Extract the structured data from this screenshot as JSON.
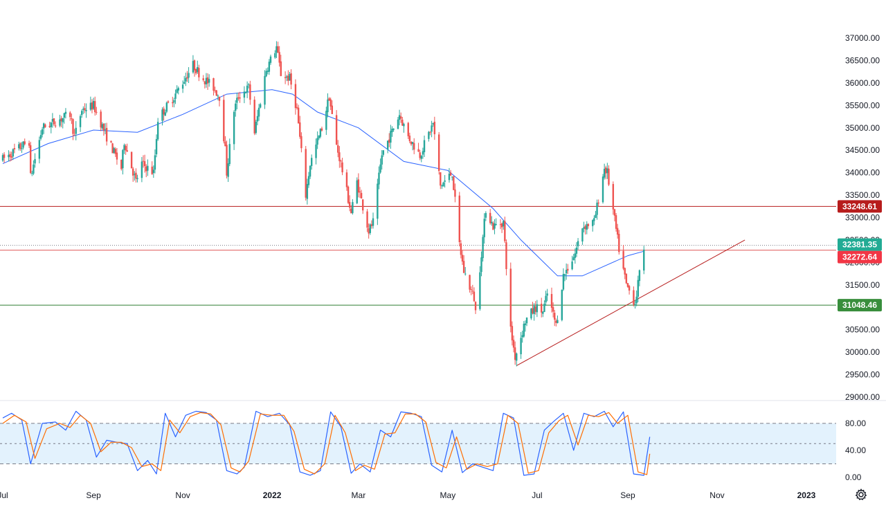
{
  "chart_data": [
    {
      "type": "candlestick",
      "title": "",
      "x_axis": {
        "type": "date",
        "range": [
          "2021-07-01",
          "2023-01-10"
        ],
        "ticks": [
          {
            "date": "2021-07-01",
            "label": "Jul",
            "bold": false
          },
          {
            "date": "2021-09-01",
            "label": "Sep",
            "bold": false
          },
          {
            "date": "2021-11-01",
            "label": "Nov",
            "bold": false
          },
          {
            "date": "2022-01-01",
            "label": "2022",
            "bold": true
          },
          {
            "date": "2022-03-01",
            "label": "Mar",
            "bold": false
          },
          {
            "date": "2022-05-01",
            "label": "May",
            "bold": false
          },
          {
            "date": "2022-07-01",
            "label": "Jul",
            "bold": false
          },
          {
            "date": "2022-09-01",
            "label": "Sep",
            "bold": false
          },
          {
            "date": "2022-11-01",
            "label": "Nov",
            "bold": false
          },
          {
            "date": "2023-01-01",
            "label": "2023",
            "bold": true
          }
        ]
      },
      "y_axis": {
        "range": [
          28850,
          37550
        ],
        "ticks": [
          "37000.00",
          "36500.00",
          "36000.00",
          "35500.00",
          "35000.00",
          "34500.00",
          "34000.00",
          "33500.00",
          "33000.00",
          "32500.00",
          "32000.00",
          "31500.00",
          "31000.00",
          "30500.00",
          "30000.00",
          "29500.00",
          "29000.00"
        ],
        "tick_values": [
          37000,
          36500,
          36000,
          35500,
          35000,
          34500,
          34000,
          33500,
          33000,
          32500,
          32000,
          31500,
          31000,
          30500,
          30000,
          29500,
          29000
        ]
      },
      "price_path": [
        [
          "2021-07-01",
          34300
        ],
        [
          "2021-07-19",
          34700
        ],
        [
          "2021-07-20",
          33900
        ],
        [
          "2021-07-28",
          35000
        ],
        [
          "2021-08-16",
          35300
        ],
        [
          "2021-08-19",
          34800
        ],
        [
          "2021-08-24",
          35400
        ],
        [
          "2021-09-01",
          35500
        ],
        [
          "2021-09-10",
          34800
        ],
        [
          "2021-09-20",
          34100
        ],
        [
          "2021-09-22",
          34700
        ],
        [
          "2021-09-30",
          33800
        ],
        [
          "2021-10-04",
          34200
        ],
        [
          "2021-10-12",
          34000
        ],
        [
          "2021-10-15",
          35200
        ],
        [
          "2021-10-26",
          35700
        ],
        [
          "2021-11-08",
          36400
        ],
        [
          "2021-11-15",
          36100
        ],
        [
          "2021-11-22",
          35900
        ],
        [
          "2021-11-26",
          35700
        ],
        [
          "2021-11-30",
          34500
        ],
        [
          "2021-12-01",
          34000
        ],
        [
          "2021-12-06",
          35400
        ],
        [
          "2021-12-09",
          35700
        ],
        [
          "2021-12-16",
          35900
        ],
        [
          "2021-12-20",
          34900
        ],
        [
          "2021-12-28",
          36300
        ],
        [
          "2022-01-04",
          36800
        ],
        [
          "2022-01-07",
          36200
        ],
        [
          "2022-01-13",
          36100
        ],
        [
          "2022-01-18",
          35400
        ],
        [
          "2022-01-24",
          33500
        ],
        [
          "2022-01-27",
          34200
        ],
        [
          "2022-02-04",
          35000
        ],
        [
          "2022-02-09",
          35700
        ],
        [
          "2022-02-14",
          34600
        ],
        [
          "2022-02-17",
          34200
        ],
        [
          "2022-02-24",
          33100
        ],
        [
          "2022-02-28",
          33800
        ],
        [
          "2022-03-08",
          32700
        ],
        [
          "2022-03-11",
          32900
        ],
        [
          "2022-03-17",
          34400
        ],
        [
          "2022-03-29",
          35300
        ],
        [
          "2022-04-04",
          34800
        ],
        [
          "2022-04-12",
          34400
        ],
        [
          "2022-04-21",
          35100
        ],
        [
          "2022-04-26",
          33700
        ],
        [
          "2022-05-04",
          34000
        ],
        [
          "2022-05-09",
          32400
        ],
        [
          "2022-05-12",
          31800
        ],
        [
          "2022-05-19",
          31200
        ],
        [
          "2022-05-20",
          30900
        ],
        [
          "2022-05-27",
          33200
        ],
        [
          "2022-06-01",
          32800
        ],
        [
          "2022-06-08",
          32900
        ],
        [
          "2022-06-13",
          30500
        ],
        [
          "2022-06-16",
          29900
        ],
        [
          "2022-06-17",
          30000
        ],
        [
          "2022-06-23",
          30700
        ],
        [
          "2022-06-30",
          31000
        ],
        [
          "2022-07-05",
          30900
        ],
        [
          "2022-07-08",
          31300
        ],
        [
          "2022-07-14",
          30600
        ],
        [
          "2022-07-19",
          31700
        ],
        [
          "2022-07-27",
          32200
        ],
        [
          "2022-08-01",
          32800
        ],
        [
          "2022-08-09",
          32900
        ],
        [
          "2022-08-16",
          34100
        ],
        [
          "2022-08-18",
          34000
        ],
        [
          "2022-08-26",
          32300
        ],
        [
          "2022-08-31",
          31500
        ],
        [
          "2022-09-06",
          31100
        ],
        [
          "2022-09-12",
          32350
        ]
      ],
      "moving_average_path": [
        [
          "2021-07-01",
          34200
        ],
        [
          "2021-08-01",
          34650
        ],
        [
          "2021-09-01",
          34950
        ],
        [
          "2021-10-01",
          34900
        ],
        [
          "2021-11-01",
          35300
        ],
        [
          "2021-12-01",
          35750
        ],
        [
          "2022-01-01",
          35850
        ],
        [
          "2022-01-15",
          35750
        ],
        [
          "2022-02-01",
          35350
        ],
        [
          "2022-03-01",
          35000
        ],
        [
          "2022-04-01",
          34250
        ],
        [
          "2022-05-01",
          34050
        ],
        [
          "2022-06-01",
          33200
        ],
        [
          "2022-06-20",
          32500
        ],
        [
          "2022-07-15",
          31700
        ],
        [
          "2022-08-01",
          31700
        ],
        [
          "2022-09-01",
          32150
        ],
        [
          "2022-09-12",
          32250
        ]
      ],
      "horizontal_levels": [
        {
          "value": 33248.61,
          "label": "33248.61",
          "color": "#b71c1c",
          "line_color": "#b71c1c"
        },
        {
          "value": 32381.35,
          "label": "32381.35",
          "color": "#22ab94",
          "line_color": "#787b86",
          "dotted": true
        },
        {
          "value": 32272.64,
          "label": "32272.64",
          "color": "#f23645",
          "line_color": "#e05a5a"
        },
        {
          "value": 31048.46,
          "label": "31048.46",
          "color": "#388e3c",
          "line_color": "#2e7d32"
        }
      ],
      "trendline": {
        "from": [
          "2022-06-17",
          29700
        ],
        "to": [
          "2022-11-20",
          32500
        ],
        "color": "#b71c1c"
      },
      "colors": {
        "up": "#26a69a",
        "down": "#ef5350",
        "moving_average": "#2962ff"
      }
    },
    {
      "type": "line",
      "indicator": "stochastic",
      "y_axis": {
        "range": [
          0,
          103
        ],
        "ticks": [
          "80.00",
          "40.00",
          "0.00"
        ],
        "tick_values": [
          80,
          40,
          0
        ]
      },
      "band": {
        "upper": 80,
        "lower": 20,
        "middle": 50,
        "fill": "#e3f2fd"
      },
      "series": [
        {
          "role": "k",
          "color": "#2962ff",
          "points": [
            [
              "2021-07-01",
              88
            ],
            [
              "2021-07-07",
              95
            ],
            [
              "2021-07-14",
              85
            ],
            [
              "2021-07-20",
              20
            ],
            [
              "2021-07-28",
              80
            ],
            [
              "2021-08-06",
              82
            ],
            [
              "2021-08-13",
              70
            ],
            [
              "2021-08-20",
              98
            ],
            [
              "2021-08-27",
              85
            ],
            [
              "2021-09-03",
              30
            ],
            [
              "2021-09-10",
              55
            ],
            [
              "2021-09-17",
              52
            ],
            [
              "2021-09-24",
              50
            ],
            [
              "2021-10-01",
              10
            ],
            [
              "2021-10-08",
              25
            ],
            [
              "2021-10-14",
              5
            ],
            [
              "2021-10-20",
              95
            ],
            [
              "2021-10-27",
              60
            ],
            [
              "2021-11-03",
              92
            ],
            [
              "2021-11-10",
              98
            ],
            [
              "2021-11-17",
              96
            ],
            [
              "2021-11-24",
              85
            ],
            [
              "2021-12-01",
              10
            ],
            [
              "2021-12-08",
              5
            ],
            [
              "2021-12-13",
              15
            ],
            [
              "2021-12-21",
              98
            ],
            [
              "2021-12-29",
              90
            ],
            [
              "2022-01-06",
              95
            ],
            [
              "2022-01-13",
              78
            ],
            [
              "2022-01-20",
              8
            ],
            [
              "2022-01-27",
              3
            ],
            [
              "2022-02-03",
              10
            ],
            [
              "2022-02-10",
              97
            ],
            [
              "2022-02-17",
              75
            ],
            [
              "2022-02-24",
              6
            ],
            [
              "2022-03-02",
              20
            ],
            [
              "2022-03-09",
              8
            ],
            [
              "2022-03-16",
              70
            ],
            [
              "2022-03-23",
              60
            ],
            [
              "2022-03-30",
              97
            ],
            [
              "2022-04-06",
              95
            ],
            [
              "2022-04-13",
              90
            ],
            [
              "2022-04-20",
              18
            ],
            [
              "2022-04-27",
              8
            ],
            [
              "2022-05-04",
              70
            ],
            [
              "2022-05-11",
              7
            ],
            [
              "2022-05-18",
              20
            ],
            [
              "2022-05-25",
              15
            ],
            [
              "2022-06-01",
              10
            ],
            [
              "2022-06-08",
              95
            ],
            [
              "2022-06-15",
              88
            ],
            [
              "2022-06-22",
              3
            ],
            [
              "2022-06-29",
              5
            ],
            [
              "2022-07-06",
              70
            ],
            [
              "2022-07-13",
              84
            ],
            [
              "2022-07-19",
              95
            ],
            [
              "2022-07-26",
              40
            ],
            [
              "2022-08-02",
              95
            ],
            [
              "2022-08-09",
              90
            ],
            [
              "2022-08-16",
              98
            ],
            [
              "2022-08-22",
              75
            ],
            [
              "2022-08-29",
              97
            ],
            [
              "2022-09-05",
              5
            ],
            [
              "2022-09-12",
              3
            ],
            [
              "2022-09-16",
              60
            ]
          ]
        },
        {
          "role": "d",
          "color": "#ff6d00",
          "points": [
            [
              "2021-07-01",
              80
            ],
            [
              "2021-07-09",
              92
            ],
            [
              "2021-07-17",
              82
            ],
            [
              "2021-07-23",
              28
            ],
            [
              "2021-07-31",
              72
            ],
            [
              "2021-08-09",
              80
            ],
            [
              "2021-08-16",
              74
            ],
            [
              "2021-08-23",
              92
            ],
            [
              "2021-08-30",
              80
            ],
            [
              "2021-09-06",
              38
            ],
            [
              "2021-09-13",
              52
            ],
            [
              "2021-09-20",
              52
            ],
            [
              "2021-09-27",
              44
            ],
            [
              "2021-10-04",
              16
            ],
            [
              "2021-10-11",
              20
            ],
            [
              "2021-10-17",
              10
            ],
            [
              "2021-10-23",
              85
            ],
            [
              "2021-10-30",
              66
            ],
            [
              "2021-11-06",
              90
            ],
            [
              "2021-11-13",
              96
            ],
            [
              "2021-11-20",
              94
            ],
            [
              "2021-11-27",
              78
            ],
            [
              "2021-12-04",
              14
            ],
            [
              "2021-12-10",
              8
            ],
            [
              "2021-12-16",
              24
            ],
            [
              "2021-12-24",
              94
            ],
            [
              "2022-01-01",
              92
            ],
            [
              "2022-01-09",
              92
            ],
            [
              "2022-01-16",
              68
            ],
            [
              "2022-01-23",
              12
            ],
            [
              "2022-01-30",
              5
            ],
            [
              "2022-02-06",
              20
            ],
            [
              "2022-02-13",
              92
            ],
            [
              "2022-02-20",
              66
            ],
            [
              "2022-02-27",
              10
            ],
            [
              "2022-03-05",
              18
            ],
            [
              "2022-03-12",
              12
            ],
            [
              "2022-03-19",
              64
            ],
            [
              "2022-03-26",
              66
            ],
            [
              "2022-04-02",
              94
            ],
            [
              "2022-04-09",
              94
            ],
            [
              "2022-04-16",
              82
            ],
            [
              "2022-04-23",
              22
            ],
            [
              "2022-04-30",
              14
            ],
            [
              "2022-05-07",
              60
            ],
            [
              "2022-05-14",
              12
            ],
            [
              "2022-05-21",
              20
            ],
            [
              "2022-05-28",
              16
            ],
            [
              "2022-06-04",
              20
            ],
            [
              "2022-06-11",
              92
            ],
            [
              "2022-06-18",
              80
            ],
            [
              "2022-06-25",
              6
            ],
            [
              "2022-07-02",
              10
            ],
            [
              "2022-07-09",
              66
            ],
            [
              "2022-07-16",
              84
            ],
            [
              "2022-07-22",
              92
            ],
            [
              "2022-07-29",
              48
            ],
            [
              "2022-08-05",
              92
            ],
            [
              "2022-08-12",
              90
            ],
            [
              "2022-08-19",
              96
            ],
            [
              "2022-08-25",
              80
            ],
            [
              "2022-09-01",
              92
            ],
            [
              "2022-09-08",
              8
            ],
            [
              "2022-09-14",
              4
            ],
            [
              "2022-09-16",
              35
            ]
          ]
        }
      ]
    }
  ],
  "toolbar": {
    "settings_icon": "gear-icon"
  }
}
